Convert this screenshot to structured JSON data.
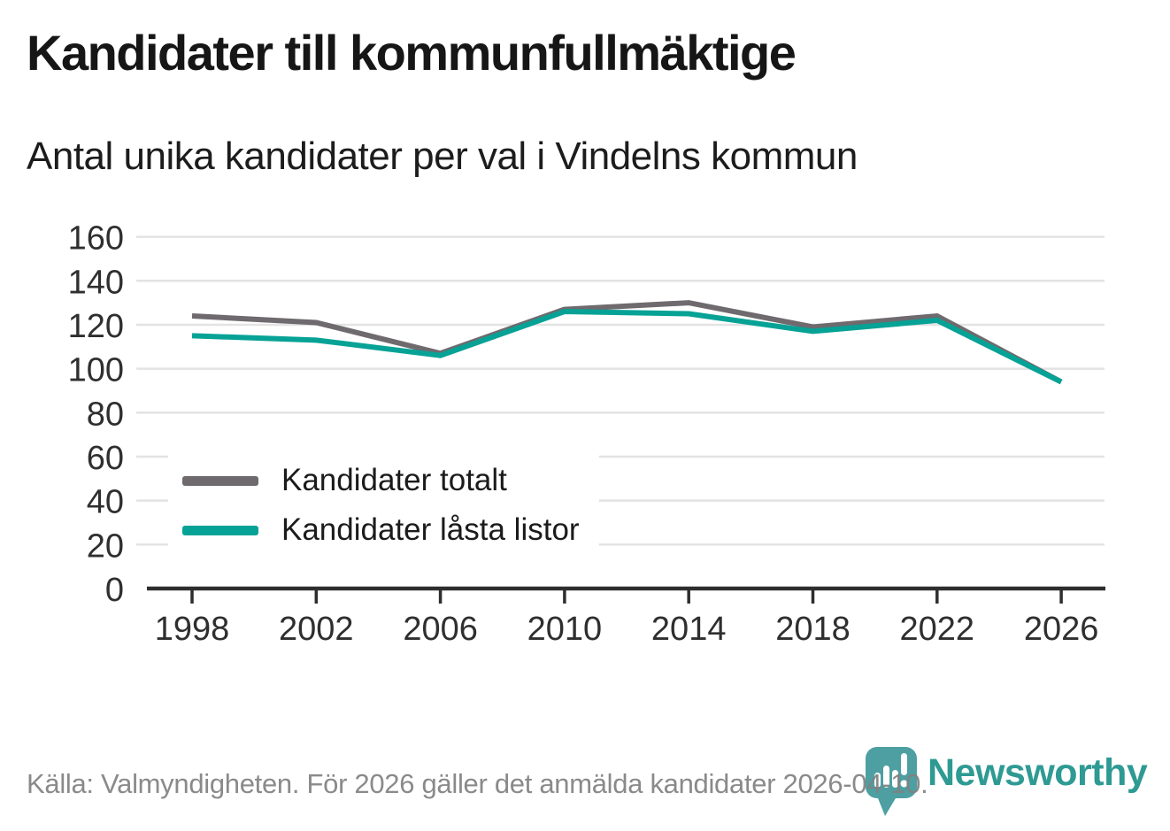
{
  "header": {
    "title": "Kandidater till kommunfullmäktige",
    "subtitle": "Antal unika kandidater per val i Vindelns kommun"
  },
  "chart_data": {
    "type": "line",
    "x": [
      1998,
      2002,
      2006,
      2010,
      2014,
      2018,
      2022,
      2026
    ],
    "series": [
      {
        "name": "Kandidater totalt",
        "color": "#6e6a6e",
        "values": [
          124,
          121,
          107,
          127,
          130,
          119,
          124,
          94
        ]
      },
      {
        "name": "Kandidater låsta listor",
        "color": "#07a296",
        "values": [
          115,
          113,
          106,
          126,
          125,
          117,
          122,
          94
        ]
      }
    ],
    "ylim": [
      0,
      160
    ],
    "ytick_step": 20,
    "yticks": [
      0,
      20,
      40,
      60,
      80,
      100,
      120,
      140,
      160
    ],
    "grid": true,
    "legend_position": "inside-bottom-left",
    "xlabel": "",
    "ylabel": ""
  },
  "footer": {
    "source": "Källa: Valmyndigheten. För 2026 gäller det anmälda kandidater 2026-04-10.",
    "brand": "Newsworthy"
  },
  "colors": {
    "title_text": "#161616",
    "axis_text": "#2f2f2f",
    "gridline": "#e3e3e3",
    "axis_line": "#2e2e2e",
    "source_text": "#808080",
    "logo_pin": "#4d9fa2",
    "brand_text": "#2e9a93"
  }
}
